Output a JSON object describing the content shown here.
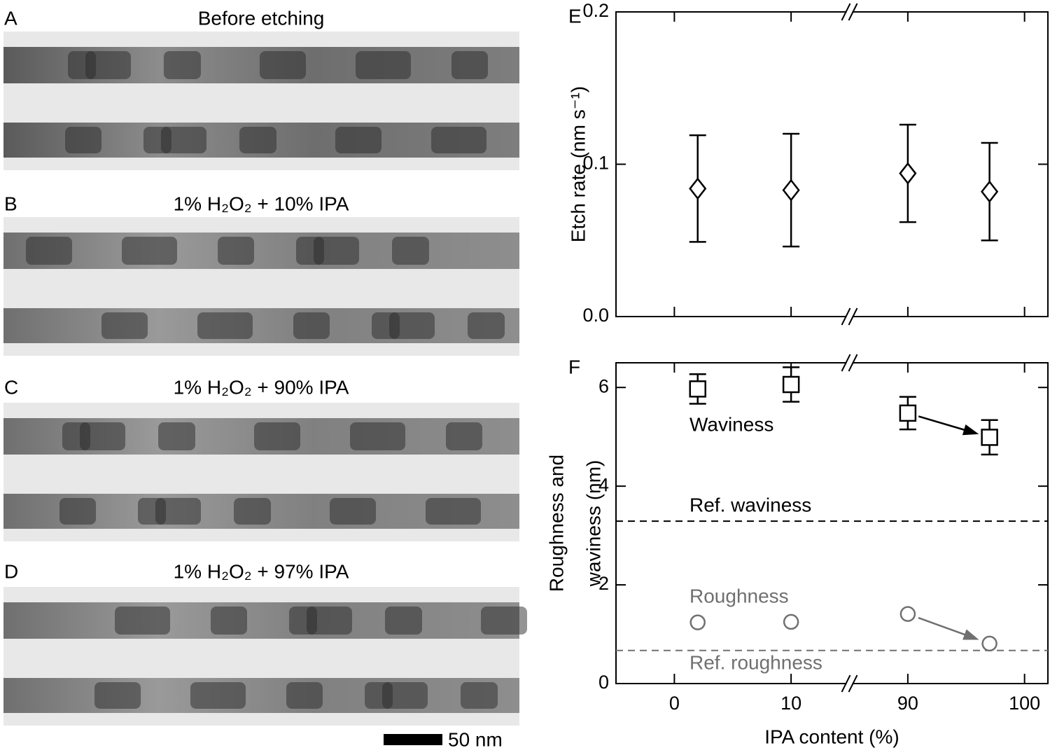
{
  "panels": [
    {
      "letter": "A",
      "title": "Before etching"
    },
    {
      "letter": "B",
      "title": "1% H₂O₂ + 10% IPA"
    },
    {
      "letter": "C",
      "title": "1% H₂O₂ + 90% IPA"
    },
    {
      "letter": "D",
      "title": "1% H₂O₂ + 97% IPA"
    }
  ],
  "scale_bar": "50 nm",
  "chart_data": [
    {
      "type": "scatter",
      "panel": "E",
      "ylabel": "Etch rate (nm s⁻¹)",
      "xlim": [
        -5,
        102
      ],
      "xbreak": [
        15,
        85
      ],
      "xticks": [
        0,
        10,
        90,
        100
      ],
      "ylim": [
        0,
        0.2
      ],
      "yticks": [
        {
          "value": 0,
          "label": "0.0"
        },
        0.1,
        0.2
      ],
      "x": [
        2,
        10,
        90,
        97
      ],
      "series": [
        {
          "marker": "diamond",
          "color": "#000000",
          "values": [
            0.084,
            0.083,
            0.094,
            0.082
          ],
          "errors": [
            0.035,
            0.037,
            0.032,
            0.032
          ]
        }
      ]
    },
    {
      "type": "scatter",
      "panel": "F",
      "ylabel": [
        "Roughness and",
        "waviness (nm)"
      ],
      "xlabel": "IPA content (%)",
      "xlim": [
        -5,
        102
      ],
      "xbreak": [
        15,
        85
      ],
      "xticks": [
        0,
        10,
        90,
        100
      ],
      "ylim": [
        0,
        6.5
      ],
      "yticks": [
        0,
        2,
        4,
        6
      ],
      "x": [
        2,
        10,
        90,
        97
      ],
      "series": [
        {
          "name": "Waviness",
          "marker": "square",
          "color": "#000000",
          "values": [
            5.97,
            6.06,
            5.48,
            4.99
          ],
          "errors": [
            0.3,
            0.35,
            0.33,
            0.35
          ]
        },
        {
          "name": "Roughness",
          "marker": "circle",
          "color": "#707070",
          "values": [
            1.24,
            1.25,
            1.41,
            0.81
          ]
        }
      ],
      "hlines": [
        {
          "value": 3.29,
          "label": "Ref. waviness",
          "color": "#000000"
        },
        {
          "value": 0.67,
          "label": "Ref. roughness",
          "color": "#707070"
        }
      ]
    }
  ]
}
